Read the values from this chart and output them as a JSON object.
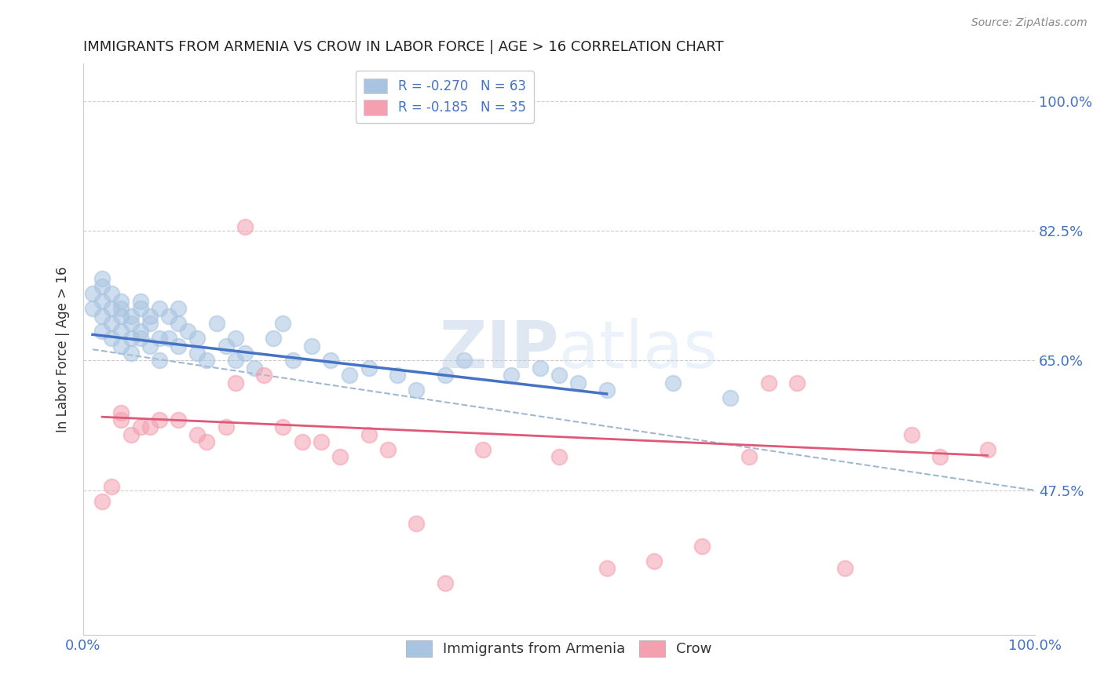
{
  "title": "IMMIGRANTS FROM ARMENIA VS CROW IN LABOR FORCE | AGE > 16 CORRELATION CHART",
  "source_text": "Source: ZipAtlas.com",
  "ylabel": "In Labor Force | Age > 16",
  "xlim": [
    0.0,
    1.0
  ],
  "ylim": [
    0.28,
    1.05
  ],
  "yticks": [
    0.475,
    0.65,
    0.825,
    1.0
  ],
  "ytick_labels": [
    "47.5%",
    "65.0%",
    "82.5%",
    "100.0%"
  ],
  "xticks": [
    0.0,
    1.0
  ],
  "xtick_labels": [
    "0.0%",
    "100.0%"
  ],
  "armenia_color": "#a8c4e0",
  "crow_color": "#f4a0b0",
  "armenia_line_color": "#4472c4",
  "crow_line_color": "#e05878",
  "dashed_line_color": "#a0b8d0",
  "watermark_color": "#c8d8e8",
  "background_color": "#ffffff",
  "grid_color": "#c0c0c0",
  "title_color": "#222222",
  "axis_label_color": "#333333",
  "tick_label_color": "#4472c4",
  "legend_label1": "R = -0.270   N = 63",
  "legend_label2": "R = -0.185   N = 35",
  "legend_bottom_labels": [
    "Immigrants from Armenia",
    "Crow"
  ],
  "armenia_scatter_x": [
    0.01,
    0.01,
    0.02,
    0.02,
    0.02,
    0.02,
    0.02,
    0.03,
    0.03,
    0.03,
    0.03,
    0.04,
    0.04,
    0.04,
    0.04,
    0.04,
    0.05,
    0.05,
    0.05,
    0.05,
    0.06,
    0.06,
    0.06,
    0.06,
    0.07,
    0.07,
    0.07,
    0.08,
    0.08,
    0.08,
    0.09,
    0.09,
    0.1,
    0.1,
    0.1,
    0.11,
    0.12,
    0.12,
    0.13,
    0.14,
    0.15,
    0.16,
    0.16,
    0.17,
    0.18,
    0.2,
    0.21,
    0.22,
    0.24,
    0.26,
    0.28,
    0.3,
    0.33,
    0.35,
    0.38,
    0.4,
    0.45,
    0.48,
    0.5,
    0.52,
    0.55,
    0.62,
    0.68
  ],
  "armenia_scatter_y": [
    0.72,
    0.74,
    0.76,
    0.73,
    0.71,
    0.69,
    0.75,
    0.72,
    0.7,
    0.68,
    0.74,
    0.71,
    0.73,
    0.69,
    0.67,
    0.72,
    0.7,
    0.68,
    0.71,
    0.66,
    0.73,
    0.69,
    0.72,
    0.68,
    0.71,
    0.67,
    0.7,
    0.68,
    0.65,
    0.72,
    0.71,
    0.68,
    0.7,
    0.67,
    0.72,
    0.69,
    0.66,
    0.68,
    0.65,
    0.7,
    0.67,
    0.65,
    0.68,
    0.66,
    0.64,
    0.68,
    0.7,
    0.65,
    0.67,
    0.65,
    0.63,
    0.64,
    0.63,
    0.61,
    0.63,
    0.65,
    0.63,
    0.64,
    0.63,
    0.62,
    0.61,
    0.62,
    0.6
  ],
  "crow_scatter_x": [
    0.02,
    0.03,
    0.04,
    0.04,
    0.05,
    0.06,
    0.07,
    0.08,
    0.1,
    0.12,
    0.13,
    0.15,
    0.16,
    0.17,
    0.19,
    0.21,
    0.23,
    0.25,
    0.27,
    0.3,
    0.32,
    0.35,
    0.38,
    0.42,
    0.5,
    0.55,
    0.6,
    0.65,
    0.7,
    0.72,
    0.75,
    0.8,
    0.87,
    0.9,
    0.95
  ],
  "crow_scatter_y": [
    0.46,
    0.48,
    0.58,
    0.57,
    0.55,
    0.56,
    0.56,
    0.57,
    0.57,
    0.55,
    0.54,
    0.56,
    0.62,
    0.83,
    0.63,
    0.56,
    0.54,
    0.54,
    0.52,
    0.55,
    0.53,
    0.43,
    0.35,
    0.53,
    0.52,
    0.37,
    0.38,
    0.4,
    0.52,
    0.62,
    0.62,
    0.37,
    0.55,
    0.52,
    0.53
  ],
  "armenia_trend_x": [
    0.01,
    0.55
  ],
  "armenia_trend_y": [
    0.685,
    0.605
  ],
  "crow_trend_x": [
    0.02,
    0.95
  ],
  "crow_trend_y": [
    0.574,
    0.522
  ],
  "dashed_trend_x": [
    0.01,
    1.0
  ],
  "dashed_trend_y": [
    0.665,
    0.475
  ]
}
